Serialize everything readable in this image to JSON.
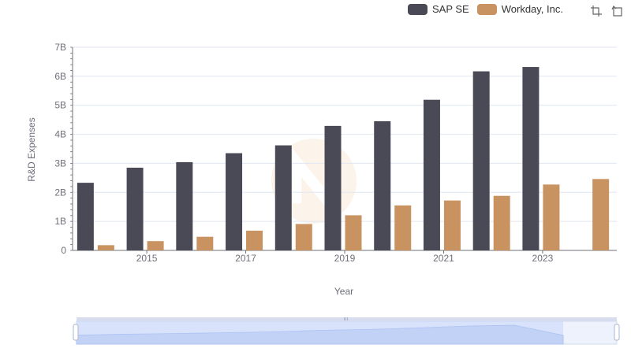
{
  "legend": [
    {
      "name": "SAP SE",
      "color": "#4a4a56"
    },
    {
      "name": "Workday, Inc.",
      "color": "#c89361"
    }
  ],
  "toolbox": {
    "icons": [
      "zoom-icon",
      "restore-icon"
    ]
  },
  "watermark": "watermark-logo",
  "chart_data": {
    "type": "bar",
    "xlabel": "Year",
    "ylabel": "R&D Expenses",
    "ylim": [
      0,
      7000000000
    ],
    "yticks": [
      "0",
      "1B",
      "2B",
      "3B",
      "4B",
      "5B",
      "6B",
      "7B"
    ],
    "xticks": [
      "2015",
      "2017",
      "2019",
      "2021",
      "2023"
    ],
    "categories": [
      "2014",
      "2015",
      "2016",
      "2017",
      "2018",
      "2019",
      "2020",
      "2021",
      "2022",
      "2023",
      "2024"
    ],
    "grid": true,
    "legend_position": "top-right",
    "series": [
      {
        "name": "SAP SE",
        "color": "#4a4a56",
        "values": [
          2330000000,
          2850000000,
          3040000000,
          3350000000,
          3620000000,
          4290000000,
          4450000000,
          5190000000,
          6170000000,
          6320000000,
          null
        ]
      },
      {
        "name": "Workday, Inc.",
        "color": "#c89361",
        "values": [
          180000000,
          320000000,
          470000000,
          680000000,
          910000000,
          1210000000,
          1550000000,
          1720000000,
          1880000000,
          2270000000,
          2460000000
        ]
      }
    ]
  }
}
